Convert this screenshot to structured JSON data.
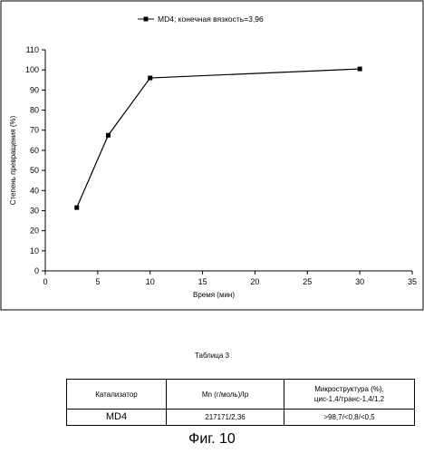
{
  "chart_data": {
    "type": "line",
    "x": [
      3,
      6,
      10,
      30
    ],
    "series": [
      {
        "name": "MD4; конечная вязкость=3,96",
        "values": [
          31.5,
          67.5,
          96,
          100.5
        ]
      }
    ],
    "xlabel": "Время (мин)",
    "ylabel": "Степень превращения (%)",
    "xlim": [
      0,
      35
    ],
    "ylim": [
      0,
      110
    ],
    "xticks": [
      "0",
      "5",
      "10",
      "15",
      "20",
      "25",
      "30",
      "35"
    ],
    "yticks": [
      "0",
      "10",
      "20",
      "30",
      "40",
      "50",
      "60",
      "70",
      "80",
      "90",
      "100",
      "110"
    ],
    "grid": false,
    "legend_position": "top-center",
    "color": "#000000"
  },
  "table": {
    "caption": "Таблица 3",
    "headers": {
      "catalyst": "Катализатор",
      "mn": "Mn (г/моль)/Ip",
      "micro_line1": "Микроструктура (%),",
      "micro_line2": "цис-1,4/транс-1,4/1,2"
    },
    "row": {
      "catalyst": "MD4",
      "mn": "217171/2,36",
      "micro": ">98,7/<0,8/<0,5"
    }
  },
  "figure_caption": "Фиг. 10"
}
